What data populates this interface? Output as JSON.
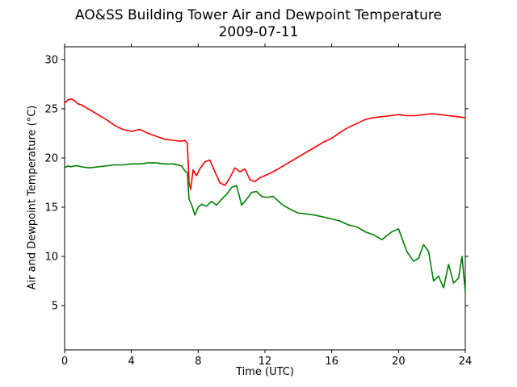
{
  "chart_data": {
    "type": "line",
    "title": "AO&SS Building Tower Air and Dewpoint Temperature",
    "subtitle": "2009-07-11",
    "xlabel": "Time (UTC)",
    "ylabel": "Air and Dewpoint Temperature (°C)",
    "xlim": [
      0,
      24
    ],
    "ylim": [
      0.5,
      31.3
    ],
    "xticks": [
      0,
      4,
      8,
      12,
      16,
      20,
      24
    ],
    "yticks": [
      5,
      10,
      15,
      20,
      25,
      30
    ],
    "grid": false,
    "legend": "none",
    "series": [
      {
        "color": "#ff0000",
        "x": [
          0,
          0.2,
          0.4,
          0.6,
          0.8,
          1,
          1.5,
          2,
          2.5,
          3,
          3.5,
          4,
          4.5,
          5,
          5.5,
          6,
          6.5,
          7,
          7.2,
          7.35,
          7.45,
          7.55,
          7.7,
          7.9,
          8.1,
          8.4,
          8.7,
          9,
          9.3,
          9.6,
          9.9,
          10.2,
          10.5,
          10.8,
          11.1,
          11.4,
          11.7,
          12,
          12.5,
          13,
          13.5,
          14,
          14.5,
          15,
          15.5,
          16,
          16.5,
          17,
          17.5,
          18,
          18.5,
          19,
          19.5,
          20,
          20.5,
          21,
          21.5,
          22,
          22.5,
          23,
          23.5,
          24
        ],
        "y": [
          25.6,
          25.9,
          26.0,
          25.8,
          25.5,
          25.4,
          24.9,
          24.4,
          23.9,
          23.3,
          22.9,
          22.7,
          22.9,
          22.5,
          22.2,
          21.9,
          21.8,
          21.7,
          21.8,
          21.5,
          17.5,
          16.8,
          18.8,
          18.2,
          18.9,
          19.6,
          19.8,
          18.6,
          17.5,
          17.2,
          18.0,
          19.0,
          18.6,
          18.9,
          17.8,
          17.6,
          18.0,
          18.2,
          18.6,
          19.1,
          19.6,
          20.1,
          20.6,
          21.1,
          21.6,
          22.0,
          22.6,
          23.1,
          23.5,
          23.9,
          24.1,
          24.2,
          24.3,
          24.4,
          24.3,
          24.3,
          24.4,
          24.5,
          24.4,
          24.3,
          24.2,
          24.1
        ]
      },
      {
        "color": "#008000",
        "x": [
          0,
          0.2,
          0.4,
          0.6,
          0.8,
          1,
          1.5,
          2,
          2.5,
          3,
          3.5,
          4,
          4.5,
          5,
          5.5,
          6,
          6.5,
          7,
          7.2,
          7.35,
          7.45,
          7.6,
          7.8,
          8.0,
          8.2,
          8.5,
          8.8,
          9.1,
          9.4,
          9.7,
          10.0,
          10.3,
          10.6,
          10.9,
          11.2,
          11.5,
          11.8,
          12.1,
          12.5,
          13,
          13.5,
          14,
          14.5,
          15,
          15.5,
          16,
          16.5,
          17,
          17.5,
          18,
          18.5,
          19,
          19.3,
          19.6,
          20,
          20.5,
          20.9,
          21.2,
          21.5,
          21.8,
          22.1,
          22.4,
          22.7,
          23,
          23.3,
          23.6,
          23.8,
          24
        ],
        "y": [
          19.0,
          19.2,
          19.1,
          19.2,
          19.2,
          19.1,
          19.0,
          19.1,
          19.2,
          19.3,
          19.3,
          19.4,
          19.4,
          19.5,
          19.5,
          19.4,
          19.4,
          19.2,
          18.7,
          18.5,
          15.8,
          15.3,
          14.2,
          15.0,
          15.3,
          15.1,
          15.6,
          15.2,
          15.8,
          16.3,
          17.0,
          17.2,
          15.2,
          15.8,
          16.5,
          16.6,
          16.1,
          16.0,
          16.1,
          15.3,
          14.8,
          14.4,
          14.3,
          14.2,
          14.0,
          13.8,
          13.6,
          13.2,
          13.0,
          12.5,
          12.2,
          11.7,
          12.1,
          12.5,
          12.8,
          10.5,
          9.5,
          9.8,
          11.2,
          10.5,
          7.5,
          8.0,
          6.8,
          9.2,
          7.3,
          7.8,
          10.0,
          6.4
        ]
      }
    ]
  }
}
